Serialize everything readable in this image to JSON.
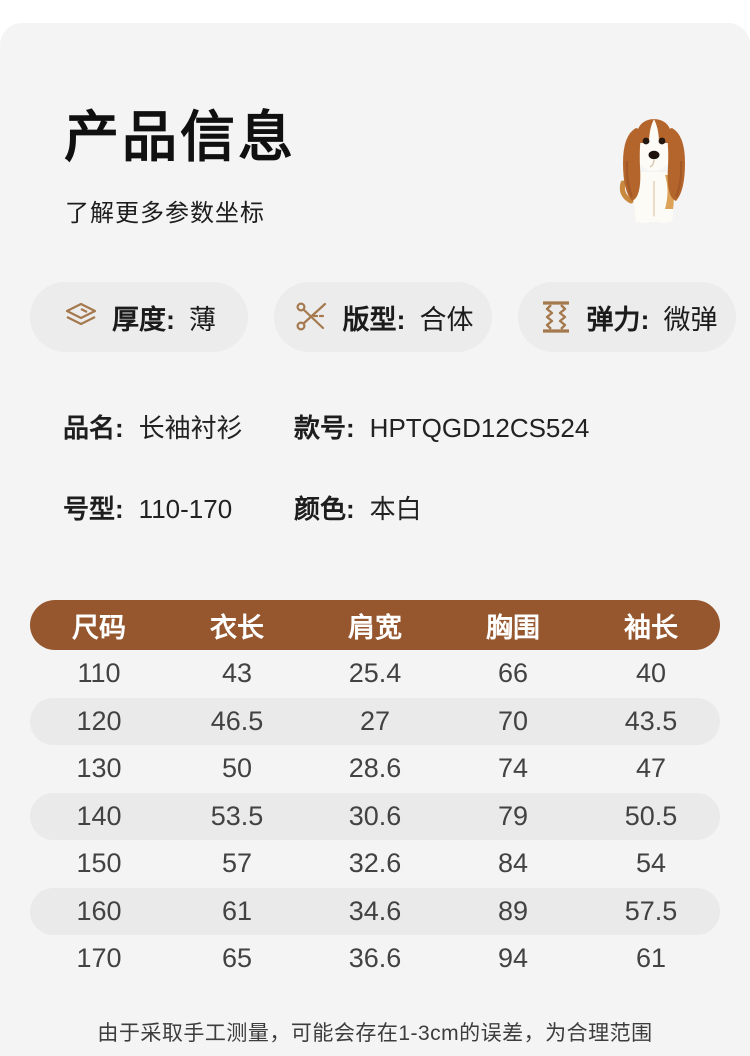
{
  "header": {
    "title": "产品信息",
    "subtitle": "了解更多参数坐标"
  },
  "features": [
    {
      "icon": "fabric-layers-icon",
      "label": "厚度:",
      "value": "薄"
    },
    {
      "icon": "scissors-icon",
      "label": "版型:",
      "value": "合体"
    },
    {
      "icon": "elastic-icon",
      "label": "弹力:",
      "value": "微弹"
    }
  ],
  "product": {
    "name_label": "品名:",
    "name": "长袖衬衫",
    "style_label": "款号:",
    "style": "HPTQGD12CS524",
    "size_label": "号型:",
    "size": "110-170",
    "color_label": "颜色:",
    "color": "本白"
  },
  "size_table": {
    "headers": [
      "尺码",
      "衣长",
      "肩宽",
      "胸围",
      "袖长"
    ],
    "rows": [
      [
        "110",
        "43",
        "25.4",
        "66",
        "40"
      ],
      [
        "120",
        "46.5",
        "27",
        "70",
        "43.5"
      ],
      [
        "130",
        "50",
        "28.6",
        "74",
        "47"
      ],
      [
        "140",
        "53.5",
        "30.6",
        "79",
        "50.5"
      ],
      [
        "150",
        "57",
        "32.6",
        "84",
        "54"
      ],
      [
        "160",
        "61",
        "34.6",
        "89",
        "57.5"
      ],
      [
        "170",
        "65",
        "36.6",
        "94",
        "61"
      ]
    ]
  },
  "footer_note": "由于采取手工测量，可能会存在1-3cm的误差，为合理范围",
  "colors": {
    "accent_brown": "#96572f",
    "icon_brown": "#a5794e",
    "card_bg": "#f4f4f4",
    "pill_bg": "#ececec",
    "row_alt_bg": "#eaeaea"
  }
}
